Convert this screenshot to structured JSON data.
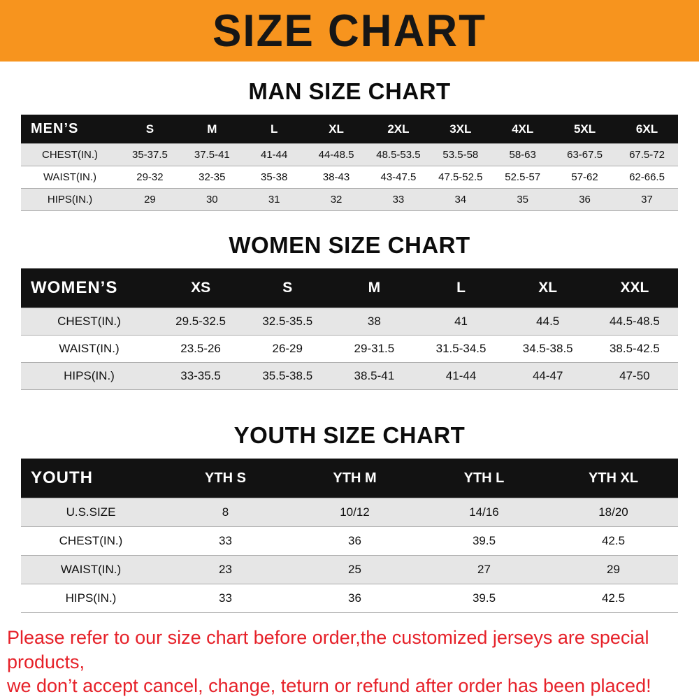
{
  "banner": {
    "title": "SIZE CHART",
    "bg_color": "#F7941E"
  },
  "colors": {
    "banner_bg": "#F7941E",
    "header_bg": "#121212",
    "row_alt": "#e6e6e6",
    "notice_red": "#e62129"
  },
  "chart_data": [
    {
      "type": "table",
      "title": "MAN SIZE CHART",
      "columns": [
        "MEN’S",
        "S",
        "M",
        "L",
        "XL",
        "2XL",
        "3XL",
        "4XL",
        "5XL",
        "6XL"
      ],
      "rows": [
        [
          "CHEST(IN.)",
          "35-37.5",
          "37.5-41",
          "41-44",
          "44-48.5",
          "48.5-53.5",
          "53.5-58",
          "58-63",
          "63-67.5",
          "67.5-72"
        ],
        [
          "WAIST(IN.)",
          "29-32",
          "32-35",
          "35-38",
          "38-43",
          "43-47.5",
          "47.5-52.5",
          "52.5-57",
          "57-62",
          "62-66.5"
        ],
        [
          "HIPS(IN.)",
          "29",
          "30",
          "31",
          "32",
          "33",
          "34",
          "35",
          "36",
          "37"
        ]
      ]
    },
    {
      "type": "table",
      "title": "WOMEN SIZE CHART",
      "columns": [
        "WOMEN’S",
        "XS",
        "S",
        "M",
        "L",
        "XL",
        "XXL"
      ],
      "rows": [
        [
          "CHEST(IN.)",
          "29.5-32.5",
          "32.5-35.5",
          "38",
          "41",
          "44.5",
          "44.5-48.5"
        ],
        [
          "WAIST(IN.)",
          "23.5-26",
          "26-29",
          "29-31.5",
          "31.5-34.5",
          "34.5-38.5",
          "38.5-42.5"
        ],
        [
          "HIPS(IN.)",
          "33-35.5",
          "35.5-38.5",
          "38.5-41",
          "41-44",
          "44-47",
          "47-50"
        ]
      ]
    },
    {
      "type": "table",
      "title": "YOUTH SIZE CHART",
      "columns": [
        "YOUTH",
        "YTH S",
        "YTH M",
        "YTH L",
        "YTH XL"
      ],
      "rows": [
        [
          "U.S.SIZE",
          "8",
          "10/12",
          "14/16",
          "18/20"
        ],
        [
          "CHEST(IN.)",
          "33",
          "36",
          "39.5",
          "42.5"
        ],
        [
          "WAIST(IN.)",
          "23",
          "25",
          "27",
          "29"
        ],
        [
          "HIPS(IN.)",
          "33",
          "36",
          "39.5",
          "42.5"
        ]
      ]
    }
  ],
  "footer": {
    "lines": [
      "Please refer to our size chart before order,the customized jerseys are special products,",
      "we don’t accept cancel, change, teturn or refund after order has been placed!"
    ],
    "color": "#e62129"
  }
}
